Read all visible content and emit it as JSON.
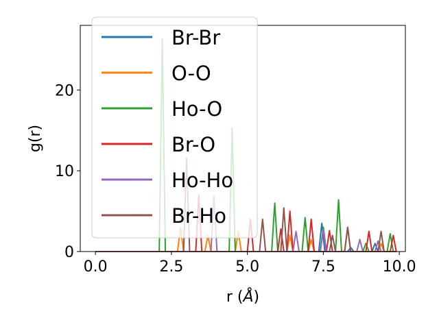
{
  "chart_data": {
    "type": "line",
    "title": "",
    "xlabel_main": "r (",
    "xlabel_unit": "Å",
    "xlabel_close": ")",
    "ylabel": "g(r)",
    "xlim": [
      -0.5,
      10.2
    ],
    "ylim": [
      0,
      28
    ],
    "xticks": [
      0.0,
      2.5,
      5.0,
      7.5,
      10.0
    ],
    "xtick_labels": [
      "0.0",
      "2.5",
      "5.0",
      "7.5",
      "10.0"
    ],
    "yticks": [
      0,
      10,
      20
    ],
    "ytick_labels": [
      "0",
      "10",
      "20"
    ],
    "legend_position": "upper-left",
    "series": [
      {
        "name": "Br-Br",
        "color": "#1f77b4",
        "points": [
          [
            0,
            0
          ],
          [
            7.35,
            0
          ],
          [
            7.45,
            3.5
          ],
          [
            7.55,
            0
          ],
          [
            8.3,
            0
          ],
          [
            8.4,
            0.5
          ],
          [
            8.5,
            0
          ],
          [
            9.1,
            0
          ],
          [
            9.2,
            1.0
          ],
          [
            9.3,
            0
          ],
          [
            9.9,
            0
          ]
        ]
      },
      {
        "name": "O-O",
        "color": "#ff7f0e",
        "points": [
          [
            0,
            0
          ],
          [
            2.7,
            0
          ],
          [
            2.8,
            3.0
          ],
          [
            2.9,
            0
          ],
          [
            3.6,
            0
          ],
          [
            3.7,
            2.0
          ],
          [
            3.8,
            0
          ],
          [
            4.6,
            0
          ],
          [
            4.7,
            2.5
          ],
          [
            4.8,
            0
          ],
          [
            6.3,
            0
          ],
          [
            6.4,
            2.0
          ],
          [
            6.5,
            0
          ],
          [
            7.0,
            0
          ],
          [
            7.1,
            1.5
          ],
          [
            7.2,
            0
          ],
          [
            9.3,
            0
          ],
          [
            9.4,
            1.0
          ],
          [
            9.5,
            0
          ],
          [
            9.9,
            0
          ]
        ]
      },
      {
        "name": "Ho-O",
        "color": "#2ca02c",
        "points": [
          [
            0,
            0
          ],
          [
            2.1,
            0
          ],
          [
            2.2,
            26.3
          ],
          [
            2.3,
            0
          ],
          [
            4.4,
            0
          ],
          [
            4.5,
            15.3
          ],
          [
            4.6,
            0
          ],
          [
            5.8,
            0
          ],
          [
            5.9,
            6.0
          ],
          [
            6.0,
            0
          ],
          [
            6.8,
            0
          ],
          [
            6.9,
            4.2
          ],
          [
            7.0,
            0
          ],
          [
            7.4,
            0
          ],
          [
            7.5,
            3.0
          ],
          [
            7.6,
            0
          ],
          [
            7.9,
            0
          ],
          [
            8.0,
            6.4
          ],
          [
            8.1,
            0
          ],
          [
            8.8,
            0
          ],
          [
            8.9,
            1.0
          ],
          [
            9.0,
            0
          ],
          [
            9.6,
            0
          ],
          [
            9.7,
            2.2
          ],
          [
            9.8,
            0
          ],
          [
            9.9,
            0
          ]
        ]
      },
      {
        "name": "Br-O",
        "color": "#d62728",
        "points": [
          [
            0,
            0
          ],
          [
            3.3,
            0
          ],
          [
            3.4,
            7.0
          ],
          [
            3.5,
            0
          ],
          [
            5.0,
            0
          ],
          [
            5.1,
            4.0
          ],
          [
            5.2,
            0
          ],
          [
            6.0,
            0
          ],
          [
            6.1,
            2.8
          ],
          [
            6.2,
            0
          ],
          [
            6.3,
            0
          ],
          [
            6.4,
            5.0
          ],
          [
            6.5,
            0
          ],
          [
            7.0,
            0
          ],
          [
            7.1,
            4.0
          ],
          [
            7.2,
            0
          ],
          [
            7.6,
            0
          ],
          [
            7.7,
            2.6
          ],
          [
            7.8,
            0
          ],
          [
            8.2,
            0
          ],
          [
            8.3,
            3.0
          ],
          [
            8.4,
            0
          ],
          [
            8.9,
            0
          ],
          [
            9.0,
            2.5
          ],
          [
            9.1,
            0
          ],
          [
            9.7,
            0
          ],
          [
            9.8,
            2.0
          ],
          [
            9.9,
            0
          ]
        ]
      },
      {
        "name": "Ho-Ho",
        "color": "#9467bd",
        "points": [
          [
            0,
            0
          ],
          [
            3.8,
            0
          ],
          [
            3.9,
            6.9
          ],
          [
            4.0,
            0
          ],
          [
            6.5,
            0
          ],
          [
            6.6,
            2.5
          ],
          [
            6.7,
            0
          ],
          [
            7.4,
            0
          ],
          [
            7.5,
            2.7
          ],
          [
            7.6,
            0
          ],
          [
            8.6,
            0
          ],
          [
            8.7,
            1.5
          ],
          [
            8.8,
            0
          ],
          [
            9.2,
            0
          ],
          [
            9.3,
            1.3
          ],
          [
            9.4,
            0
          ],
          [
            9.9,
            0
          ]
        ]
      },
      {
        "name": "Br-Ho",
        "color": "#8c564b",
        "points": [
          [
            0,
            0
          ],
          [
            2.9,
            0
          ],
          [
            3.0,
            11.6
          ],
          [
            3.1,
            0
          ],
          [
            5.4,
            0
          ],
          [
            5.5,
            4.0
          ],
          [
            5.6,
            0
          ],
          [
            6.1,
            0
          ],
          [
            6.2,
            5.4
          ],
          [
            6.3,
            0
          ],
          [
            7.7,
            0
          ],
          [
            7.8,
            2.0
          ],
          [
            7.9,
            0
          ],
          [
            8.2,
            0
          ],
          [
            8.3,
            3.0
          ],
          [
            8.4,
            0
          ],
          [
            9.3,
            0
          ],
          [
            9.4,
            2.5
          ],
          [
            9.5,
            0
          ],
          [
            9.9,
            0
          ]
        ]
      }
    ]
  }
}
